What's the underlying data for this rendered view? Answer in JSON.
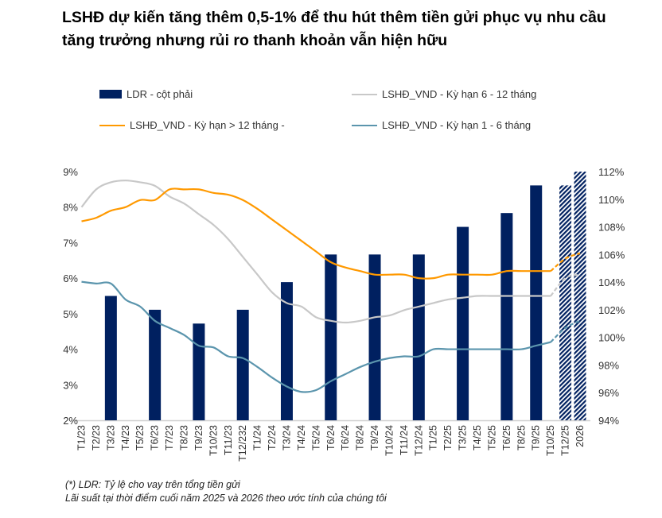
{
  "title": "LSHĐ dự kiến tăng thêm 0,5-1% để thu hút thêm tiền gửi phục vụ nhu cầu tăng trưởng nhưng rủi ro thanh khoản vẫn hiện hữu",
  "notes": [
    "(*) LDR: Tỷ lệ cho vay trên tổng tiền gửi",
    "Lãi suất tại thời điểm cuối năm 2025 và 2026 theo ước tính của chúng tôi"
  ],
  "chart_data": {
    "type": "bar+line",
    "legend_position": "top",
    "grid": false,
    "categories": [
      "T1/23",
      "T2/23",
      "T3/23",
      "T4/23",
      "T5/23",
      "T6/23",
      "T7/23",
      "T8/23",
      "T9/23",
      "T10/23",
      "T11/23",
      "T12/232",
      "T1/24",
      "T2/24",
      "T3/24",
      "T4/24",
      "T5/24",
      "T6/24",
      "T6/24",
      "T8/24",
      "T9/24",
      "T10/24",
      "T11/24",
      "T12/24",
      "T1/25",
      "T2/25",
      "T3/25",
      "T4/25",
      "T5/25",
      "T6/25",
      "T8/25",
      "T9/25",
      "T10/25",
      "T12/25",
      "2026"
    ],
    "y_left": {
      "min": 2,
      "max": 9,
      "ticks": [
        "2%",
        "3%",
        "4%",
        "5%",
        "6%",
        "7%",
        "8%",
        "9%"
      ]
    },
    "y_right": {
      "min": 94,
      "max": 112,
      "ticks": [
        "94%",
        "96%",
        "98%",
        "100%",
        "102%",
        "104%",
        "106%",
        "108%",
        "110%",
        "112%"
      ]
    },
    "bars": {
      "name": "LDR - cột phải",
      "axis": "right",
      "color": "#002060",
      "points": [
        {
          "category": "T3/23",
          "value": 103
        },
        {
          "category": "T6/23",
          "value": 102
        },
        {
          "category": "T9/23",
          "value": 101
        },
        {
          "category": "T12/232",
          "value": 102
        },
        {
          "category": "T3/24",
          "value": 104
        },
        {
          "category": "T6/24",
          "value": 106
        },
        {
          "category": "T9/24",
          "value": 106
        },
        {
          "category": "T12/24",
          "value": 106
        },
        {
          "category": "T3/25",
          "value": 108
        },
        {
          "category": "T6/25",
          "value": 109
        },
        {
          "category": "T9/25",
          "value": 111
        },
        {
          "category": "T12/25",
          "value": 111,
          "forecast": true
        },
        {
          "category": "2026",
          "value": 112,
          "forecast": true
        }
      ]
    },
    "series": [
      {
        "name": "LSHĐ_VND - Kỳ hạn 6 - 12 tháng",
        "axis": "left",
        "color": "#c8c8c8",
        "values": [
          8.0,
          8.5,
          8.7,
          8.75,
          8.7,
          8.6,
          8.3,
          8.1,
          7.8,
          7.5,
          7.1,
          6.6,
          6.1,
          5.6,
          5.3,
          5.2,
          4.9,
          4.8,
          4.75,
          4.8,
          4.9,
          4.95,
          5.1,
          5.2,
          5.3,
          5.4,
          5.45,
          5.5,
          5.5,
          5.5,
          5.5,
          5.5,
          5.5,
          6.0,
          6.1
        ]
      },
      {
        "name": "LSHĐ_VND - Kỳ hạn > 12 tháng -",
        "axis": "left",
        "color": "#ff9900",
        "values": [
          7.6,
          7.7,
          7.9,
          8.0,
          8.2,
          8.2,
          8.5,
          8.5,
          8.5,
          8.4,
          8.35,
          8.2,
          7.95,
          7.65,
          7.35,
          7.05,
          6.75,
          6.45,
          6.3,
          6.2,
          6.1,
          6.1,
          6.1,
          6.0,
          6.0,
          6.1,
          6.1,
          6.1,
          6.1,
          6.2,
          6.2,
          6.2,
          6.2,
          6.55,
          6.7
        ]
      },
      {
        "name": "LSHĐ_VND - Kỳ hạn 1 - 6 tháng",
        "axis": "left",
        "color": "#5b95ad",
        "values": [
          5.9,
          5.85,
          5.85,
          5.4,
          5.2,
          4.8,
          4.6,
          4.4,
          4.1,
          4.05,
          3.8,
          3.75,
          3.5,
          3.2,
          2.95,
          2.8,
          2.85,
          3.1,
          3.3,
          3.5,
          3.65,
          3.75,
          3.8,
          3.8,
          4.0,
          4.0,
          4.0,
          4.0,
          4.0,
          4.0,
          4.0,
          4.1,
          4.2,
          4.6,
          4.8
        ]
      }
    ],
    "forecast_from_category": "T10/25"
  }
}
